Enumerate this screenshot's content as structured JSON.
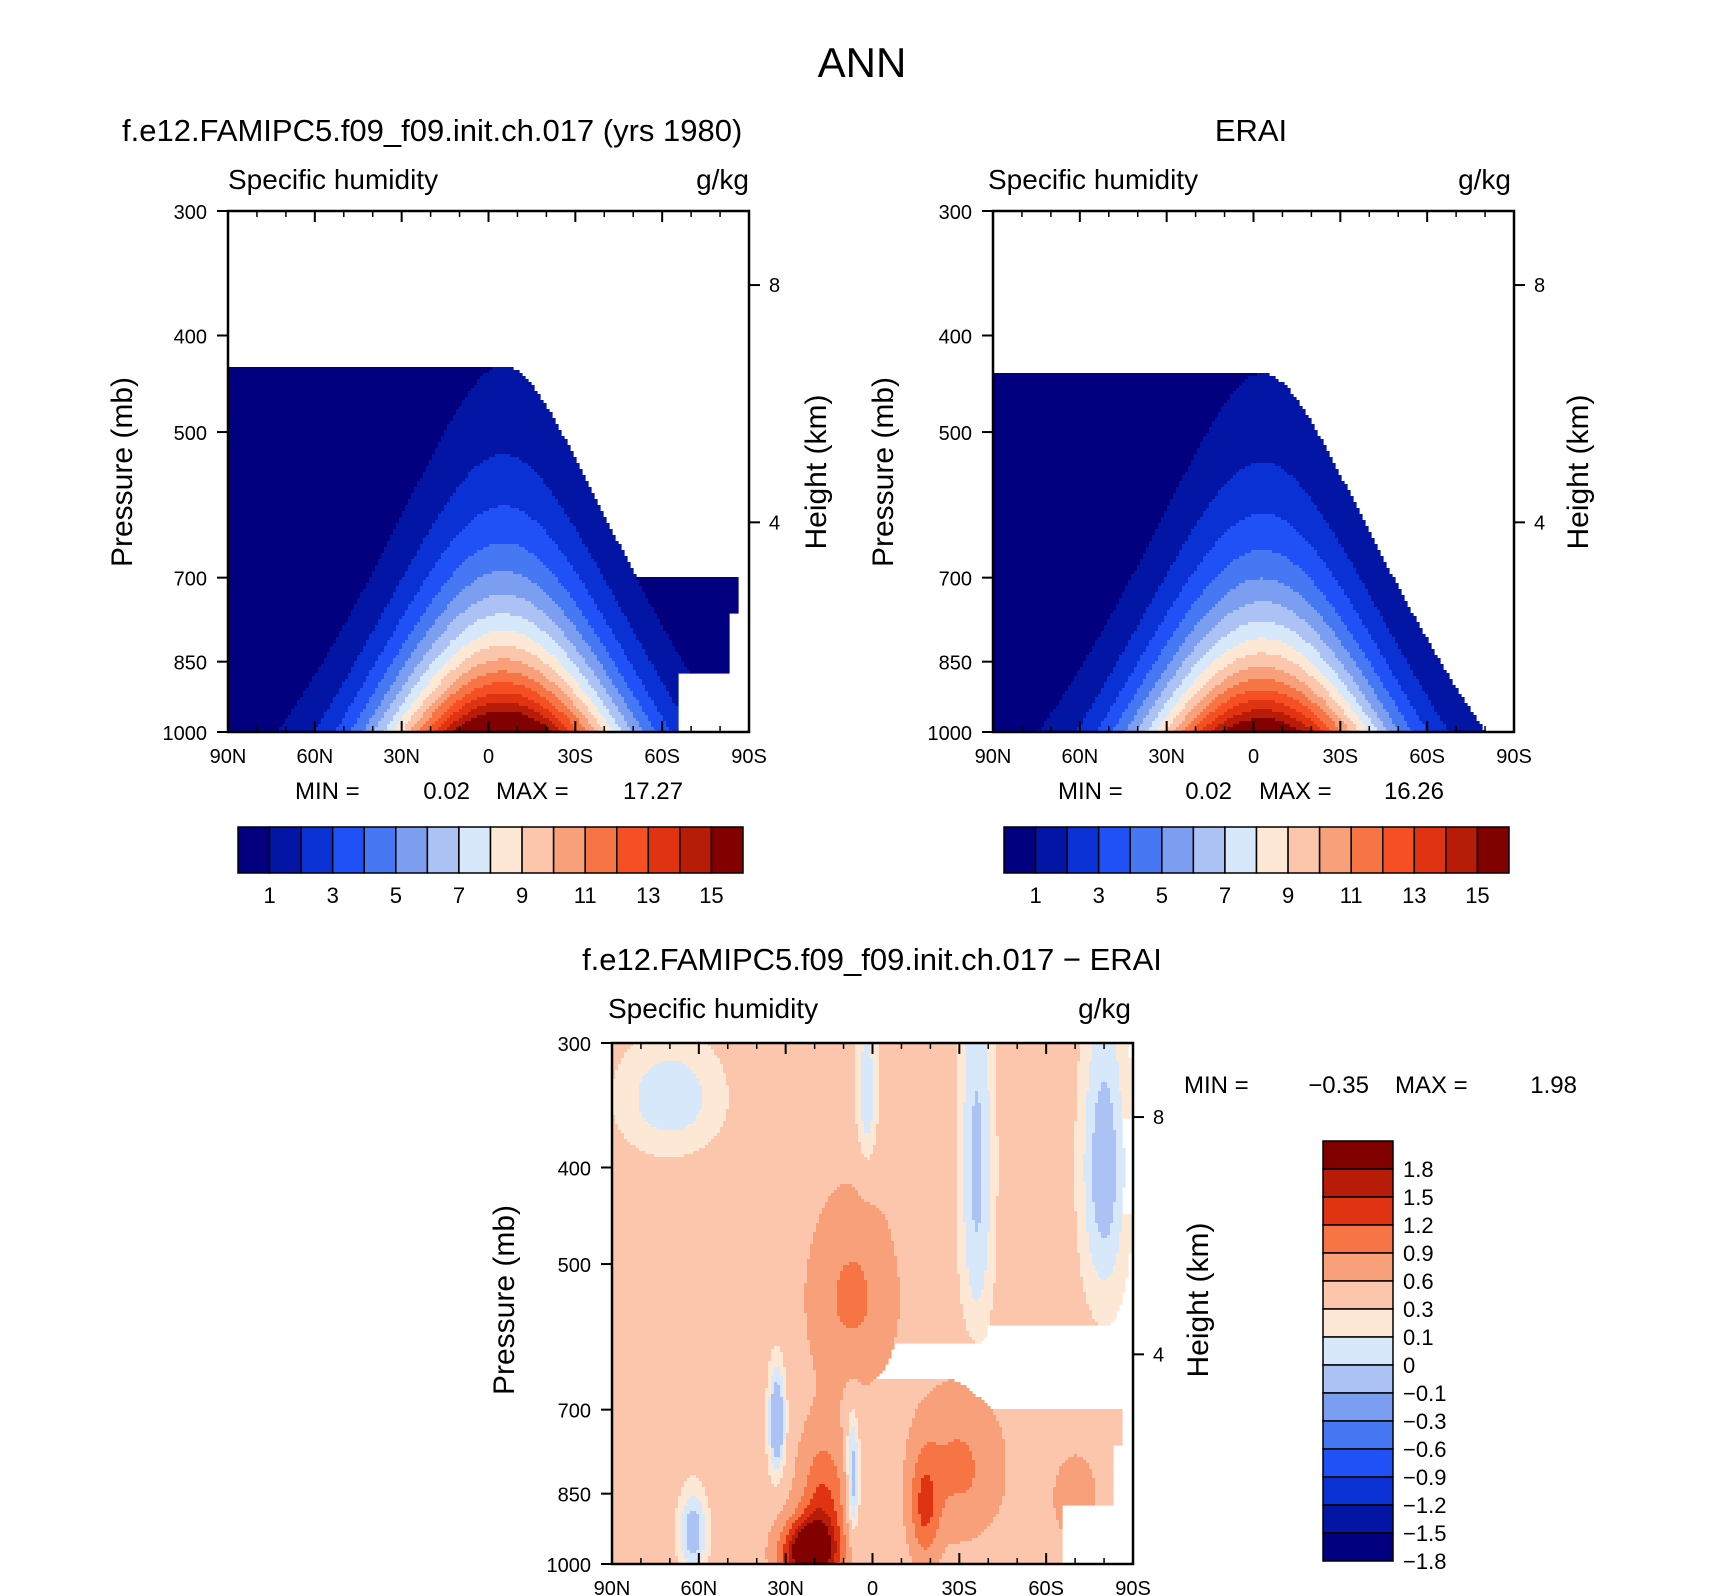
{
  "page_title": "ANN",
  "colors": {
    "abs_levels": [
      "#02007e",
      "#0315a5",
      "#0a31d3",
      "#1f51f6",
      "#4678f3",
      "#7c9ef1",
      "#acc2f4",
      "#d8e8fb",
      "#fde7d5",
      "#fcc6ad",
      "#f8a07a",
      "#f77445",
      "#f64f24",
      "#df3311",
      "#b71c08",
      "#810000"
    ],
    "diff_levels": [
      "#02007e",
      "#0315a5",
      "#0a31d3",
      "#1f51f6",
      "#4678f3",
      "#7c9ef1",
      "#acc2f4",
      "#d8e8fb",
      "#fde7d5",
      "#fcc6ad",
      "#f8a07a",
      "#f77445",
      "#df3311",
      "#b71c08",
      "#810000"
    ]
  },
  "chart_data": [
    {
      "type": "heatmap",
      "title": "f.e12.FAMIPC5.f09_f09.init.ch.017 (yrs 1980)",
      "left_subtitle": "Specific humidity",
      "right_subtitle": "g/kg",
      "ylabel": "Pressure (mb)",
      "y2label": "Height (km)",
      "xticks": [
        "90N",
        "60N",
        "30N",
        "0",
        "30S",
        "60S",
        "90S"
      ],
      "x_range": [
        90,
        -90
      ],
      "yticks": [
        "300",
        "400",
        "500",
        "700",
        "850",
        "1000"
      ],
      "y_values": [
        300,
        400,
        500,
        700,
        850,
        1000
      ],
      "y_log": true,
      "y2ticks": [
        "8",
        "4"
      ],
      "min_label": "MIN =",
      "min_value": "0.02",
      "max_label": "MAX =",
      "max_value": "17.27",
      "colorbar_labels": [
        "1",
        "3",
        "5",
        "7",
        "9",
        "11",
        "13",
        "15"
      ],
      "peak_latitude": -5,
      "peak_value": 17.27
    },
    {
      "type": "heatmap",
      "title": "ERAI",
      "left_subtitle": "Specific humidity",
      "right_subtitle": "g/kg",
      "ylabel": "Pressure (mb)",
      "y2label": "Height (km)",
      "xticks": [
        "90N",
        "60N",
        "30N",
        "0",
        "30S",
        "60S",
        "90S"
      ],
      "x_range": [
        90,
        -90
      ],
      "yticks": [
        "300",
        "400",
        "500",
        "700",
        "850",
        "1000"
      ],
      "y_values": [
        300,
        400,
        500,
        700,
        850,
        1000
      ],
      "y_log": true,
      "y2ticks": [
        "8",
        "4"
      ],
      "min_label": "MIN =",
      "min_value": "0.02",
      "max_label": "MAX =",
      "max_value": "16.26",
      "colorbar_labels": [
        "1",
        "3",
        "5",
        "7",
        "9",
        "11",
        "13",
        "15"
      ],
      "peak_latitude": -3,
      "peak_value": 16.26
    },
    {
      "type": "heatmap",
      "title": "f.e12.FAMIPC5.f09_f09.init.ch.017 − ERAI",
      "left_subtitle": "Specific humidity",
      "right_subtitle": "g/kg",
      "ylabel": "Pressure (mb)",
      "y2label": "Height (km)",
      "xticks": [
        "90N",
        "60N",
        "30N",
        "0",
        "30S",
        "60S",
        "90S"
      ],
      "x_range": [
        90,
        -90
      ],
      "yticks": [
        "300",
        "400",
        "500",
        "700",
        "850",
        "1000"
      ],
      "y_values": [
        300,
        400,
        500,
        700,
        850,
        1000
      ],
      "y_log": true,
      "y2ticks": [
        "8",
        "4"
      ],
      "min_label": "MIN =",
      "min_value": "−0.35",
      "max_label": "MAX =",
      "max_value": "1.98",
      "colorbar_labels": [
        "1.8",
        "1.5",
        "1.2",
        "0.9",
        "0.6",
        "0.3",
        "0.1",
        "0",
        "−0.1",
        "−0.3",
        "−0.6",
        "−0.9",
        "−1.2",
        "−1.5",
        "−1.8"
      ]
    }
  ]
}
